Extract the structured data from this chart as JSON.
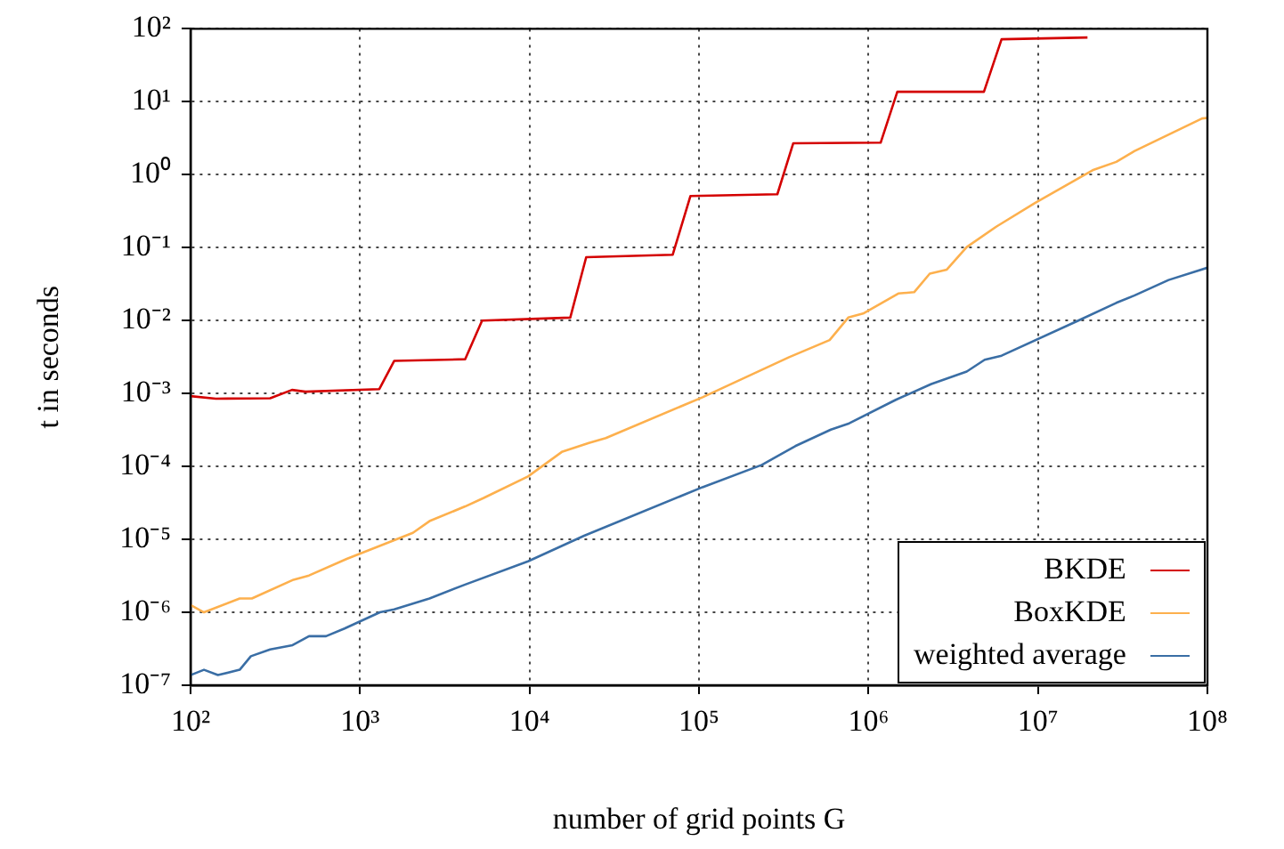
{
  "chart_data": {
    "type": "line",
    "xlabel": "number of grid points G",
    "ylabel": "t in seconds",
    "log": "xy",
    "xlim": [
      100,
      100000000
    ],
    "ylim": [
      1e-07,
      100
    ],
    "xticks": [
      {
        "value": 100,
        "label": "10²"
      },
      {
        "value": 1000,
        "label": "10³"
      },
      {
        "value": 10000,
        "label": "10⁴"
      },
      {
        "value": 100000,
        "label": "10⁵"
      },
      {
        "value": 1000000,
        "label": "10⁶"
      },
      {
        "value": 10000000,
        "label": "10⁷"
      },
      {
        "value": 100000000,
        "label": "10⁸"
      }
    ],
    "yticks": [
      {
        "value": 1e-07,
        "label": "10⁻⁷"
      },
      {
        "value": 1e-06,
        "label": "10⁻⁶"
      },
      {
        "value": 1e-05,
        "label": "10⁻⁵"
      },
      {
        "value": 0.0001,
        "label": "10⁻⁴"
      },
      {
        "value": 0.001,
        "label": "10⁻³"
      },
      {
        "value": 0.01,
        "label": "10⁻²"
      },
      {
        "value": 0.1,
        "label": "10⁻¹"
      },
      {
        "value": 1,
        "label": "10⁰"
      },
      {
        "value": 10,
        "label": "10¹"
      },
      {
        "value": 100,
        "label": "10²"
      }
    ],
    "grid": true,
    "legend": "bottom right",
    "marker": "none",
    "series": [
      {
        "name": "BKDE",
        "color": "#d40000",
        "x": [
          100,
          141,
          295,
          397,
          476,
          1300,
          1590,
          4170,
          5250,
          17400,
          21600,
          70000,
          89000,
          290000,
          360000,
          1180000,
          1480000,
          4800000,
          6100000,
          19600000
        ],
        "values": [
          0.00092,
          0.00085,
          0.00086,
          0.00112,
          0.00106,
          0.00115,
          0.0028,
          0.00295,
          0.01,
          0.011,
          0.074,
          0.08,
          0.51,
          0.54,
          2.7,
          2.75,
          13.7,
          13.7,
          72,
          76
        ]
      },
      {
        "name": "BoxKDE",
        "color": "#fdb04d",
        "x": [
          100,
          120,
          195,
          230,
          405,
          500,
          835,
          2050,
          2570,
          4170,
          5370,
          9800,
          15500,
          22400,
          28200,
          105000,
          340000,
          590000,
          760000,
          930000,
          1500000,
          1860000,
          2300000,
          2900000,
          3800000,
          5700000,
          9600000,
          21000000,
          29000000,
          37000000,
          93000000,
          100000000
        ],
        "values": [
          1.26e-06,
          1e-06,
          1.55e-06,
          1.55e-06,
          2.8e-06,
          3.2e-06,
          5.4e-06,
          1.23e-05,
          1.78e-05,
          2.83e-05,
          3.7e-05,
          7.3e-05,
          0.000158,
          0.00021,
          0.000245,
          0.00089,
          0.00315,
          0.0054,
          0.011,
          0.0125,
          0.0235,
          0.0245,
          0.044,
          0.05,
          0.102,
          0.195,
          0.41,
          1.15,
          1.5,
          2.1,
          5.9,
          6
        ]
      },
      {
        "name": "weighted average",
        "color": "#3a6ea5",
        "x": [
          100,
          120,
          145,
          195,
          227,
          295,
          400,
          500,
          630,
          810,
          1310,
          1590,
          2570,
          4170,
          9800,
          21000,
          105000,
          235000,
          370000,
          600000,
          770000,
          1450000,
          2350000,
          3800000,
          4850000,
          6100000,
          17300000,
          29000000,
          37000000,
          59000000,
          100000000
        ],
        "values": [
          1.38e-07,
          1.63e-07,
          1.38e-07,
          1.63e-07,
          2.5e-07,
          3.1e-07,
          3.55e-07,
          4.7e-07,
          4.7e-07,
          6e-07,
          1e-06,
          1.1e-06,
          1.55e-06,
          2.4e-06,
          5e-06,
          1.12e-05,
          5.2e-05,
          0.000105,
          0.00019,
          0.00032,
          0.00039,
          0.00082,
          0.00135,
          0.002,
          0.0029,
          0.0033,
          0.01,
          0.0175,
          0.022,
          0.036,
          0.053
        ]
      }
    ]
  }
}
